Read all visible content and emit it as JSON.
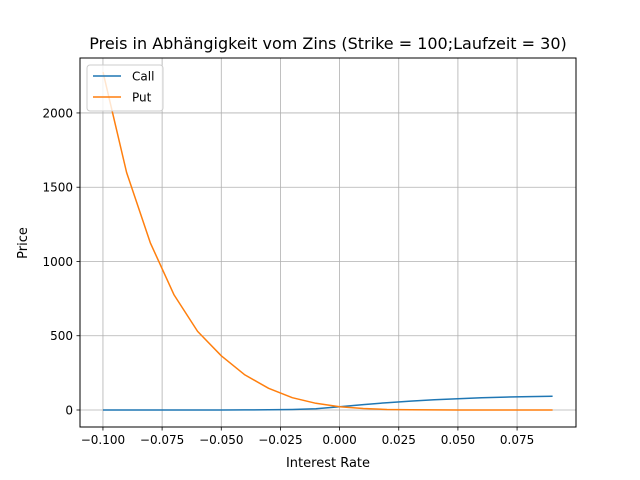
{
  "chart_data": {
    "type": "line",
    "title": "Preis in Abhängigkeit vom Zins (Strike = 100;Laufzeit = 30)",
    "xlabel": "Interest Rate",
    "ylabel": "Price",
    "xlim": [
      -0.1097,
      0.0999
    ],
    "ylim": [
      -114.5,
      2370
    ],
    "grid": true,
    "legend_position": "top-left",
    "xticks": [
      -0.1,
      -0.075,
      -0.05,
      -0.025,
      0.0,
      0.025,
      0.05,
      0.075
    ],
    "xtick_labels": [
      "−0.100",
      "−0.075",
      "−0.050",
      "−0.025",
      "0.000",
      "0.025",
      "0.050",
      "0.075"
    ],
    "yticks": [
      0,
      500,
      1000,
      1500,
      2000
    ],
    "ytick_labels": [
      "0",
      "500",
      "1000",
      "1500",
      "2000"
    ],
    "x": [
      -0.1,
      -0.09,
      -0.08,
      -0.07,
      -0.06,
      -0.05,
      -0.04,
      -0.03,
      -0.02,
      -0.01,
      0.0,
      0.01,
      0.02,
      0.03,
      0.04,
      0.05,
      0.06,
      0.07,
      0.08,
      0.09
    ],
    "series": [
      {
        "name": "Call",
        "color": "#1f77b4",
        "values": [
          0,
          0,
          0,
          0,
          0,
          0,
          0.3,
          1,
          3,
          9,
          22,
          36,
          49,
          60,
          69,
          76,
          82,
          87,
          90,
          93
        ]
      },
      {
        "name": "Put",
        "color": "#ff7f0e",
        "values": [
          2275,
          1599,
          1126,
          777,
          529,
          365,
          236,
          146,
          83,
          45,
          22,
          10,
          3,
          1,
          0.3,
          0,
          0,
          0,
          0,
          0
        ]
      }
    ]
  }
}
